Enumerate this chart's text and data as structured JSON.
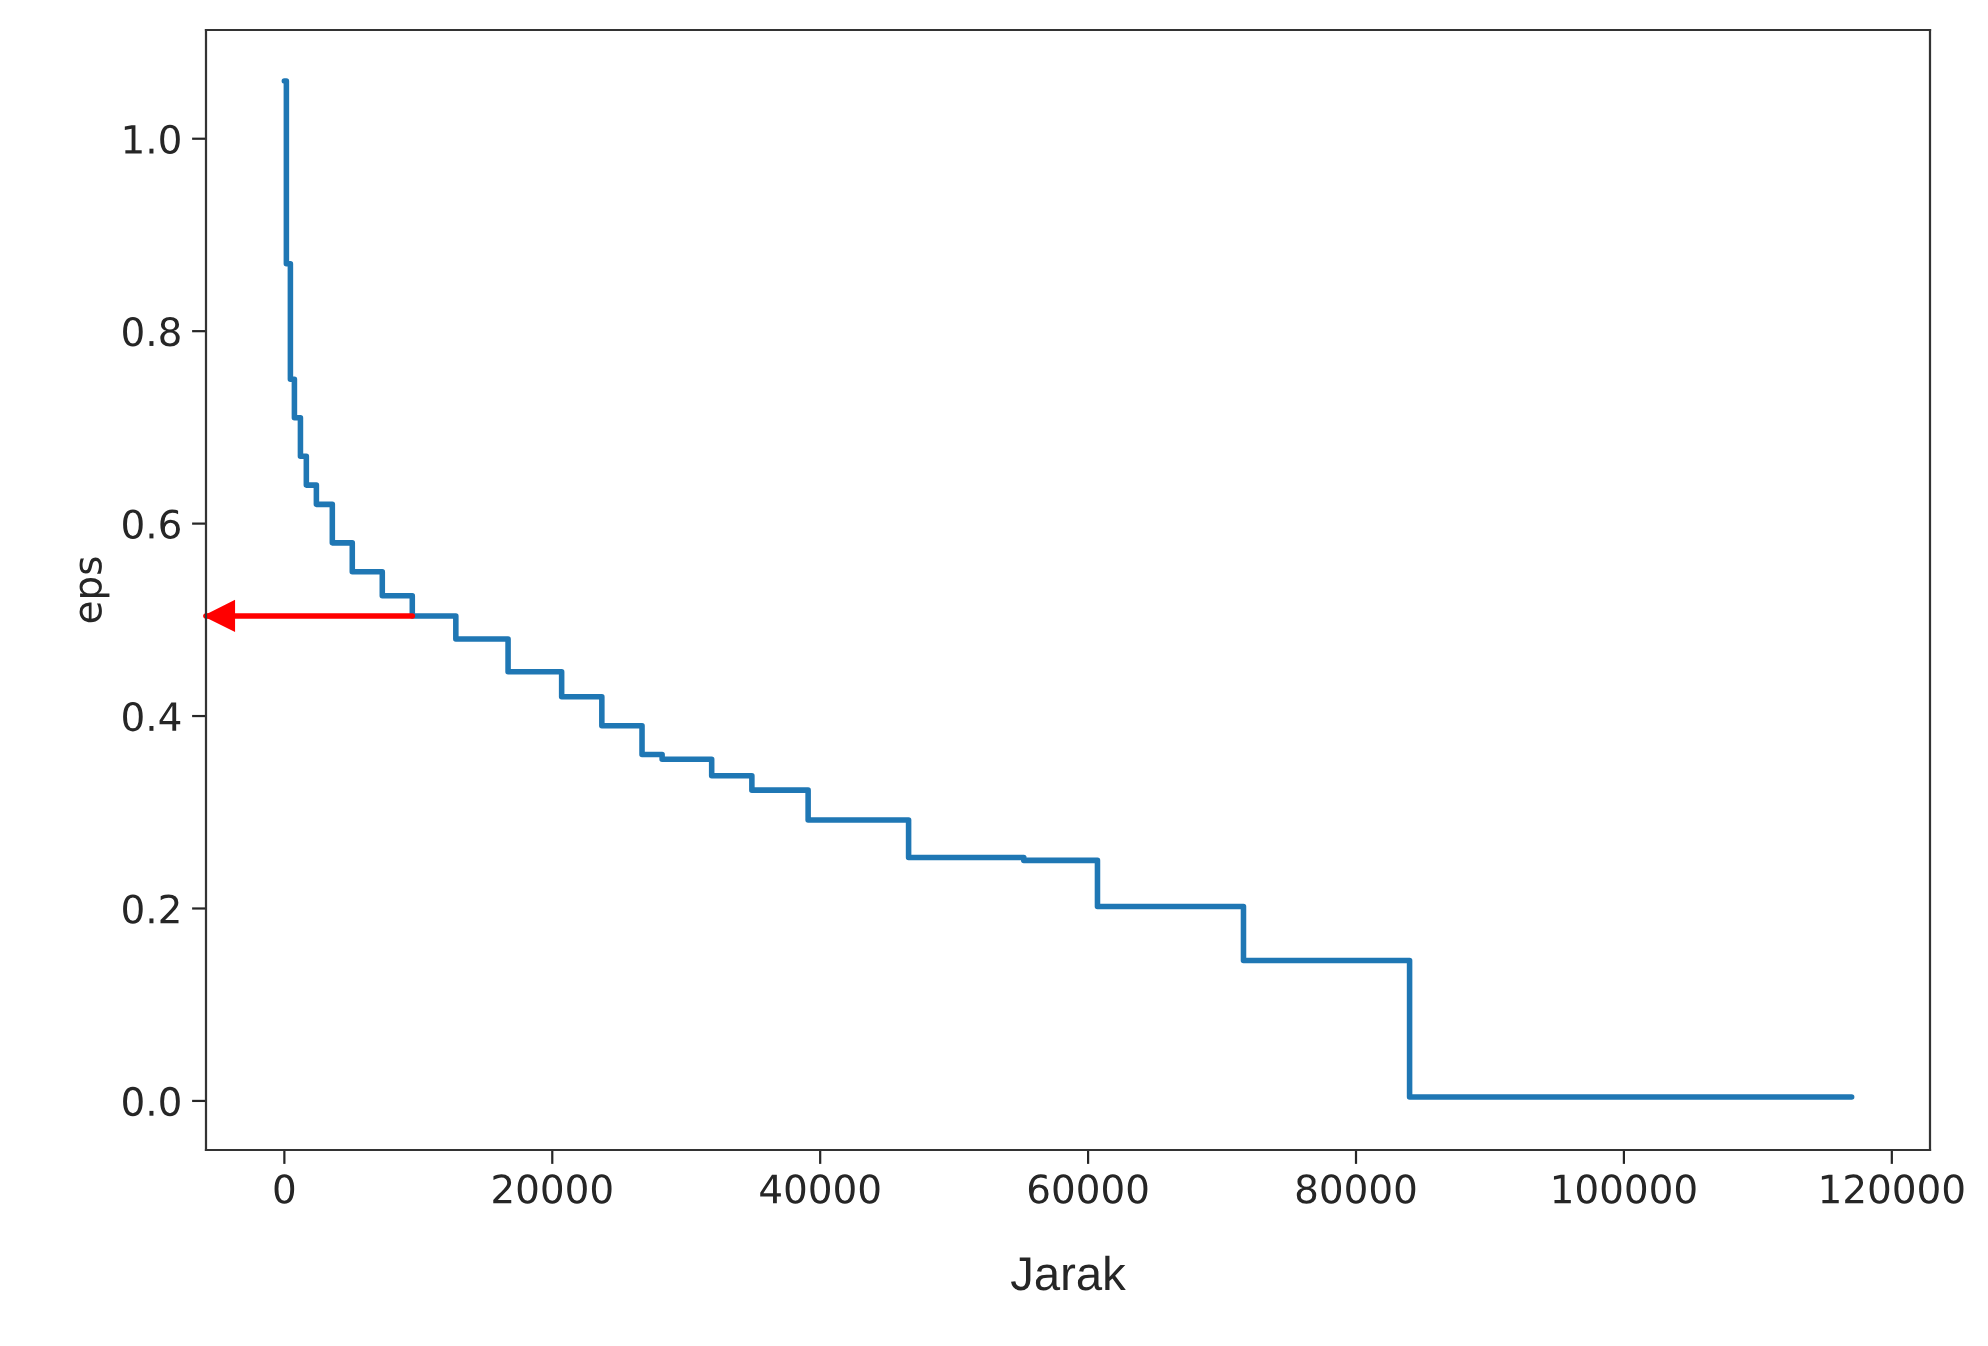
{
  "chart_data": {
    "type": "step",
    "xlabel": "Jarak",
    "ylabel": "eps",
    "x": [
      0,
      150,
      450,
      750,
      1200,
      1640,
      2390,
      3580,
      5070,
      7310,
      9550,
      12800,
      16700,
      20700,
      23700,
      26700,
      28200,
      31900,
      34900,
      39100,
      46600,
      55200,
      60700,
      71600,
      84000,
      117000
    ],
    "series": [
      {
        "color": "#1f77b4",
        "values": [
          1.06,
          0.87,
          0.75,
          0.71,
          0.67,
          0.64,
          0.62,
          0.58,
          0.55,
          0.525,
          0.504,
          0.48,
          0.446,
          0.42,
          0.39,
          0.36,
          0.355,
          0.338,
          0.323,
          0.292,
          0.253,
          0.25,
          0.202,
          0.146,
          0.004,
          0.004
        ]
      }
    ],
    "xlim": [
      -5850,
      122850
    ],
    "ylim": [
      -0.051,
      1.113
    ],
    "xticks": [
      0,
      20000,
      40000,
      60000,
      80000,
      100000,
      120000
    ],
    "yticks": [
      {
        "value": 0,
        "label": "0.0"
      },
      {
        "value": 0.2,
        "label": "0.2"
      },
      {
        "value": 0.4,
        "label": "0.4"
      },
      {
        "value": 0.6,
        "label": "0.6"
      },
      {
        "value": 0.8,
        "label": "0.8"
      },
      {
        "value": 1.0,
        "label": "1.0"
      }
    ],
    "grid": false,
    "legend": false,
    "ref_lines": [
      {
        "axis": "y",
        "value": 0.504,
        "color": "#ff0000"
      }
    ]
  }
}
